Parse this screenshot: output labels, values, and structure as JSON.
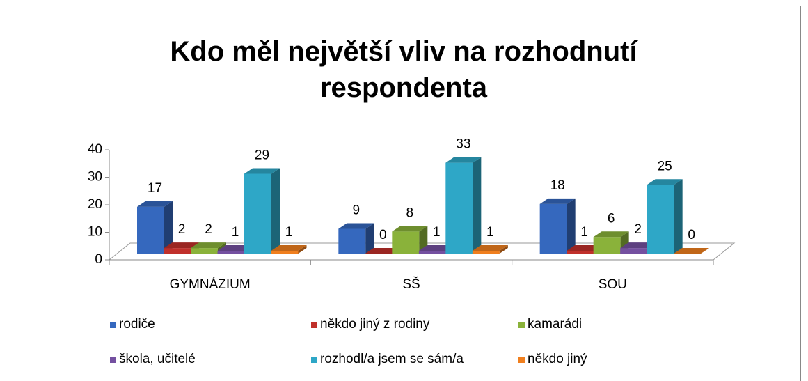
{
  "chart_data": {
    "type": "bar3d",
    "title": "Kdo měl největší vliv na rozhodnutí respondenta",
    "categories": [
      "GYMNÁZIUM",
      "SŠ",
      "SOU"
    ],
    "series": [
      {
        "name": "rodiče",
        "color": "#3568be",
        "values": [
          17,
          9,
          18
        ]
      },
      {
        "name": "někdo jiný z rodiny",
        "color": "#c0302b",
        "values": [
          2,
          0,
          1
        ]
      },
      {
        "name": "kamarádi",
        "color": "#8ab23a",
        "values": [
          2,
          8,
          6
        ]
      },
      {
        "name": "škola, učitelé",
        "color": "#7450a0",
        "values": [
          1,
          1,
          2
        ]
      },
      {
        "name": "rozhodl/a jsem se sám/a",
        "color": "#2ea7c7",
        "values": [
          29,
          33,
          25
        ]
      },
      {
        "name": "někdo jiný",
        "color": "#f07f1e",
        "values": [
          1,
          1,
          0
        ]
      }
    ],
    "ylim": [
      0,
      40
    ],
    "yticks": [
      0,
      10,
      20,
      30,
      40
    ],
    "legend": "bottom"
  }
}
